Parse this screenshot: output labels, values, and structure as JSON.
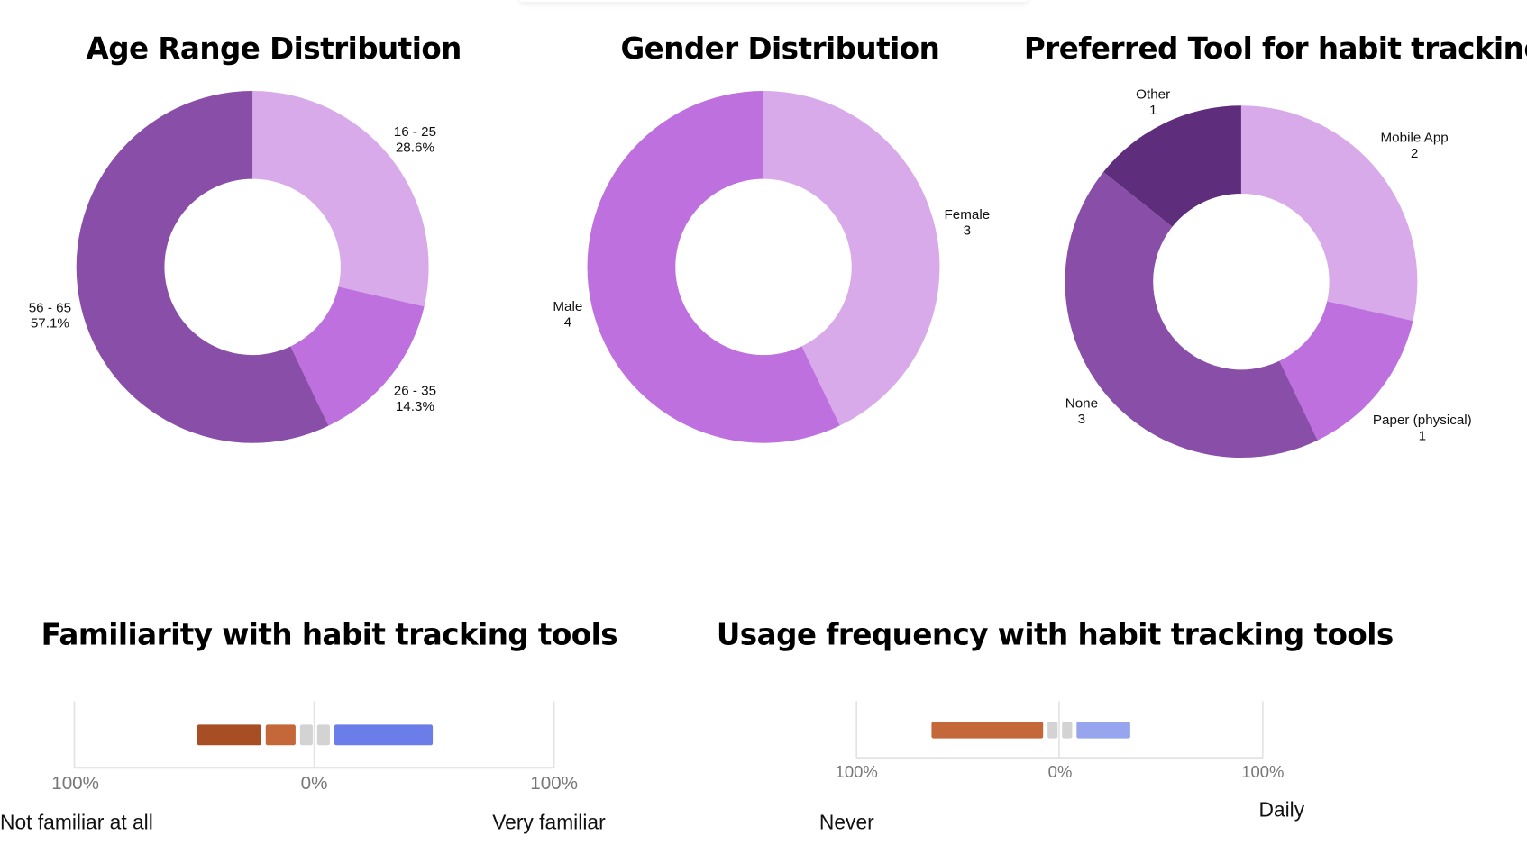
{
  "chart_data": [
    {
      "type": "pie",
      "title": "Age Range Distribution",
      "donut": true,
      "slices": [
        {
          "label": "16 - 25",
          "value_text": "28.6%",
          "value": 28.6,
          "color": "#d9aaea"
        },
        {
          "label": "26 - 35",
          "value_text": "14.3%",
          "value": 14.3,
          "color": "#bd70de"
        },
        {
          "label": "56 - 65",
          "value_text": "57.1%",
          "value": 57.1,
          "color": "#894fa8"
        }
      ]
    },
    {
      "type": "pie",
      "title": "Gender Distribution",
      "donut": true,
      "slices": [
        {
          "label": "Female",
          "value_text": "3",
          "value": 3,
          "color": "#d9aaea"
        },
        {
          "label": "Male",
          "value_text": "4",
          "value": 4,
          "color": "#bd70de"
        }
      ]
    },
    {
      "type": "pie",
      "title": "Preferred Tool for habit tracking",
      "donut": true,
      "slices": [
        {
          "label": "Mobile App",
          "value_text": "2",
          "value": 2,
          "color": "#d9aaea"
        },
        {
          "label": "Paper (physical)",
          "value_text": "1",
          "value": 1,
          "color": "#bd70de"
        },
        {
          "label": "None",
          "value_text": "3",
          "value": 3,
          "color": "#894fa8"
        },
        {
          "label": "Other",
          "value_text": "1",
          "value": 1,
          "color": "#5e2d7c"
        }
      ]
    },
    {
      "type": "bar",
      "subtype": "diverging-stacked",
      "title": "Familiarity with habit tracking tools",
      "xlim": [
        -100,
        100
      ],
      "tick_labels": [
        "100%",
        "0%",
        "100%"
      ],
      "low_label": "Not familiar at all",
      "high_label": "Very familiar",
      "grid": false,
      "left_segments": [
        {
          "value": 7.15,
          "color": "#d3d3d3"
        },
        {
          "value": 14.3,
          "color": "#c4683a"
        },
        {
          "value": 28.6,
          "color": "#a84e24"
        }
      ],
      "right_segments": [
        {
          "value": 7.15,
          "color": "#d3d3d3"
        },
        {
          "value": 42.9,
          "color": "#6b7de8"
        }
      ]
    },
    {
      "type": "bar",
      "subtype": "diverging-stacked",
      "title": "Usage frequency with habit tracking tools",
      "xlim": [
        -100,
        100
      ],
      "tick_labels": [
        "100%",
        "0%",
        "100%"
      ],
      "low_label": "Never",
      "high_label": "Daily",
      "grid": false,
      "left_segments": [
        {
          "value": 7.15,
          "color": "#d3d3d3"
        },
        {
          "value": 57.1,
          "color": "#c4683a"
        }
      ],
      "right_segments": [
        {
          "value": 7.15,
          "color": "#d3d3d3"
        },
        {
          "value": 28.6,
          "color": "#97a4ee"
        }
      ]
    }
  ]
}
